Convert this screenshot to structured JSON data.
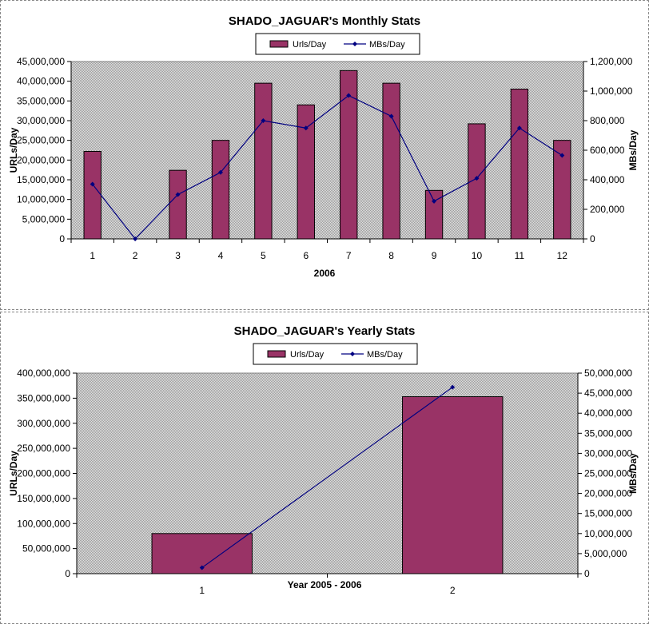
{
  "colors": {
    "bar": "#993366",
    "line": "#000080",
    "plot_bg": "#c0c0c0"
  },
  "chart_data": [
    {
      "type": "bar",
      "title": "SHADO_JAGUAR's Monthly Stats",
      "xlabel": "2006",
      "ylabel": "URLs/Day",
      "y2label": "MBs/Day",
      "categories": [
        "1",
        "2",
        "3",
        "4",
        "5",
        "6",
        "7",
        "8",
        "9",
        "10",
        "11",
        "12"
      ],
      "series": [
        {
          "name": "Urls/Day",
          "type": "bar",
          "axis": "left",
          "values": [
            22200000,
            0,
            17400000,
            25000000,
            39500000,
            34000000,
            42700000,
            39500000,
            12300000,
            29200000,
            38000000,
            25000000
          ]
        },
        {
          "name": "MBs/Day",
          "type": "line",
          "axis": "right",
          "values": [
            370000,
            0,
            300000,
            450000,
            800000,
            750000,
            970000,
            830000,
            255000,
            410000,
            750000,
            565000
          ]
        }
      ],
      "ylim": [
        0,
        45000000
      ],
      "y_ticks": [
        "0",
        "5,000,000",
        "10,000,000",
        "15,000,000",
        "20,000,000",
        "25,000,000",
        "30,000,000",
        "35,000,000",
        "40,000,000",
        "45,000,000"
      ],
      "y2lim": [
        0,
        1200000
      ],
      "y2_ticks": [
        "0",
        "200,000",
        "400,000",
        "600,000",
        "800,000",
        "1,000,000",
        "1,200,000"
      ],
      "legend": "top-center",
      "grid": false
    },
    {
      "type": "bar",
      "title": "SHADO_JAGUAR's Yearly Stats",
      "xlabel": "Year 2005 - 2006",
      "ylabel": "URLs/Day",
      "y2label": "MBs/Day",
      "categories": [
        "1",
        "2"
      ],
      "series": [
        {
          "name": "Urls/Day",
          "type": "bar",
          "axis": "left",
          "values": [
            80000000,
            353000000
          ]
        },
        {
          "name": "MBs/Day",
          "type": "line",
          "axis": "right",
          "values": [
            1500000,
            46500000
          ]
        }
      ],
      "ylim": [
        0,
        400000000
      ],
      "y_ticks": [
        "0",
        "50,000,000",
        "100,000,000",
        "150,000,000",
        "200,000,000",
        "250,000,000",
        "300,000,000",
        "350,000,000",
        "400,000,000"
      ],
      "y2lim": [
        0,
        50000000
      ],
      "y2_ticks": [
        "0",
        "5,000,000",
        "10,000,000",
        "15,000,000",
        "20,000,000",
        "25,000,000",
        "30,000,000",
        "35,000,000",
        "40,000,000",
        "45,000,000",
        "50,000,000"
      ],
      "legend": "top-center",
      "grid": false
    }
  ]
}
